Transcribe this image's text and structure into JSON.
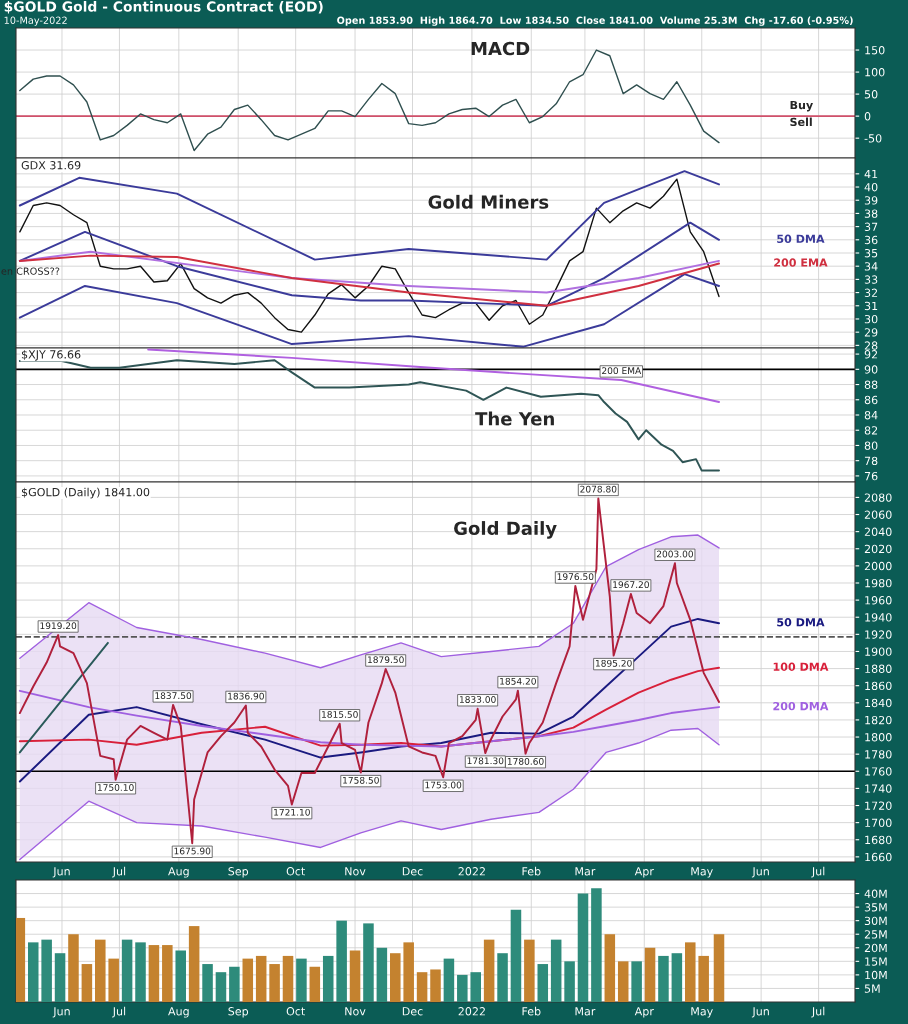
{
  "chart_data": [
    {
      "type": "line",
      "title": "MACD",
      "xlim": [
        "2021-05-08",
        "2022-07-20"
      ],
      "ylim": [
        -95,
        200
      ],
      "yticks": [
        -50,
        0,
        50,
        100,
        150
      ],
      "grid": true,
      "tick_labels": "y",
      "xticks": [
        {
          "value": "2021-06-01",
          "label": null
        },
        {
          "value": "2021-07-01",
          "label": null
        },
        {
          "value": "2021-08-01",
          "label": null
        },
        {
          "value": "2021-09-01",
          "label": null
        },
        {
          "value": "2021-10-01",
          "label": null
        },
        {
          "value": "2021-11-01",
          "label": null
        },
        {
          "value": "2021-12-01",
          "label": null
        },
        {
          "value": "2022-01-01",
          "label": null
        },
        {
          "value": "2022-02-01",
          "label": null
        },
        {
          "value": "2022-03-01",
          "label": null
        },
        {
          "value": "2022-04-01",
          "label": null
        },
        {
          "value": "2022-05-01",
          "label": null
        },
        {
          "value": "2022-06-01",
          "label": null
        },
        {
          "value": "2022-07-01",
          "label": null
        }
      ],
      "x": [
        "2021-05-10",
        "2021-05-17",
        "2021-05-24",
        "2021-05-31",
        "2021-06-07",
        "2021-06-14",
        "2021-06-21",
        "2021-06-28",
        "2021-07-05",
        "2021-07-12",
        "2021-07-19",
        "2021-07-26",
        "2021-08-02",
        "2021-08-09",
        "2021-08-16",
        "2021-08-23",
        "2021-08-30",
        "2021-09-06",
        "2021-09-13",
        "2021-09-20",
        "2021-09-27",
        "2021-10-04",
        "2021-10-11",
        "2021-10-18",
        "2021-10-25",
        "2021-11-01",
        "2021-11-08",
        "2021-11-15",
        "2021-11-22",
        "2021-11-29",
        "2021-12-06",
        "2021-12-13",
        "2021-12-20",
        "2021-12-27",
        "2022-01-03",
        "2022-01-10",
        "2022-01-17",
        "2022-01-24",
        "2022-01-31",
        "2022-02-07",
        "2022-02-14",
        "2022-02-21",
        "2022-02-28",
        "2022-03-07",
        "2022-03-14",
        "2022-03-21",
        "2022-03-28",
        "2022-04-04",
        "2022-04-11",
        "2022-04-18",
        "2022-04-25",
        "2022-05-02",
        "2022-05-10"
      ],
      "series": [
        {
          "color": "#2f4f4f",
          "values": [
            58,
            84,
            91,
            91,
            71,
            32,
            -54,
            -44,
            -21,
            5,
            -8,
            -15,
            5,
            -78,
            -41,
            -25,
            15,
            25,
            -8,
            -44,
            -54,
            -41,
            -28,
            12,
            12,
            -1,
            38,
            74,
            51,
            -17,
            -21,
            -15,
            5,
            15,
            18,
            -1,
            25,
            38,
            -15,
            -1,
            28,
            78,
            94,
            150,
            137,
            51,
            71,
            51,
            38,
            78,
            25,
            -34,
            -60
          ]
        }
      ],
      "ref_lines": [
        {
          "axis": "y",
          "value": 0,
          "color": "#d0506a"
        }
      ],
      "annotations": [
        "$GOLD Gold - Continuous Contract (EOD)",
        "10-May-2022",
        "Open 1853.90  High 1864.70  Low 1834.50  Close 1841.00  Volume 25.3M  Chg -17.60 (-0.95%)",
        "Buy",
        "Sell"
      ]
    },
    {
      "type": "line",
      "title": "Gold Miners",
      "xlim": [
        "2021-05-08",
        "2022-07-20"
      ],
      "ylim": [
        27.8,
        42.2
      ],
      "yticks": [
        28,
        29,
        30,
        31,
        32,
        33,
        34,
        35,
        36,
        37,
        38,
        39,
        40,
        41
      ],
      "grid": true,
      "tick_labels": "y",
      "xticks": [
        {
          "value": "2021-06-01",
          "label": null
        },
        {
          "value": "2021-07-01",
          "label": null
        },
        {
          "value": "2021-08-01",
          "label": null
        },
        {
          "value": "2021-09-01",
          "label": null
        },
        {
          "value": "2021-10-01",
          "label": null
        },
        {
          "value": "2021-11-01",
          "label": null
        },
        {
          "value": "2021-12-01",
          "label": null
        },
        {
          "value": "2022-01-01",
          "label": null
        },
        {
          "value": "2022-02-01",
          "label": null
        },
        {
          "value": "2022-03-01",
          "label": null
        },
        {
          "value": "2022-04-01",
          "label": null
        },
        {
          "value": "2022-05-01",
          "label": null
        },
        {
          "value": "2022-06-01",
          "label": null
        },
        {
          "value": "2022-07-01",
          "label": null
        }
      ],
      "x": [
        "2021-05-10",
        "2021-05-17",
        "2021-05-24",
        "2021-05-31",
        "2021-06-07",
        "2021-06-14",
        "2021-06-21",
        "2021-06-28",
        "2021-07-05",
        "2021-07-12",
        "2021-07-19",
        "2021-07-26",
        "2021-08-02",
        "2021-08-09",
        "2021-08-16",
        "2021-08-23",
        "2021-08-30",
        "2021-09-06",
        "2021-09-13",
        "2021-09-20",
        "2021-09-27",
        "2021-10-04",
        "2021-10-11",
        "2021-10-18",
        "2021-10-25",
        "2021-11-01",
        "2021-11-08",
        "2021-11-15",
        "2021-11-22",
        "2021-11-29",
        "2021-12-06",
        "2021-12-13",
        "2021-12-20",
        "2021-12-27",
        "2022-01-03",
        "2022-01-10",
        "2022-01-17",
        "2022-01-24",
        "2022-01-31",
        "2022-02-07",
        "2022-02-14",
        "2022-02-21",
        "2022-02-28",
        "2022-03-07",
        "2022-03-14",
        "2022-03-21",
        "2022-03-28",
        "2022-04-04",
        "2022-04-11",
        "2022-04-18",
        "2022-04-25",
        "2022-05-02",
        "2022-05-10"
      ],
      "series": [
        {
          "color": "#111111",
          "values": [
            36.6,
            38.6,
            38.8,
            38.6,
            37.9,
            37.3,
            34.0,
            33.8,
            33.8,
            34.0,
            32.8,
            32.9,
            34.2,
            32.3,
            31.6,
            31.2,
            31.8,
            32.0,
            31.2,
            30.1,
            29.2,
            29.0,
            30.3,
            31.9,
            32.6,
            31.6,
            32.5,
            34.0,
            33.8,
            32.0,
            30.3,
            30.1,
            30.7,
            31.2,
            31.2,
            29.9,
            31.0,
            31.4,
            29.6,
            30.3,
            32.3,
            34.4,
            35.1,
            38.4,
            37.3,
            38.2,
            38.8,
            38.4,
            39.3,
            40.6,
            36.6,
            35.1,
            31.7
          ]
        },
        {
          "color": "#3b3b9a",
          "x": [
            "2021-05-10",
            "2021-06-10",
            "2021-07-31",
            "2021-10-11",
            "2021-11-29",
            "2022-02-09",
            "2022-03-11",
            "2022-04-22",
            "2022-05-10"
          ],
          "values": [
            38.6,
            40.7,
            39.5,
            34.5,
            35.3,
            34.5,
            38.8,
            41.2,
            40.2
          ]
        },
        {
          "name": "50 DMA",
          "color": "#3b3b9a",
          "x": [
            "2021-05-10",
            "2021-06-13",
            "2021-07-31",
            "2021-09-29",
            "2021-11-04",
            "2021-11-29",
            "2022-02-09",
            "2022-03-11",
            "2022-04-25",
            "2022-05-10"
          ],
          "values": [
            34.4,
            36.6,
            34.0,
            31.8,
            31.4,
            31.4,
            31.0,
            33.1,
            37.3,
            36.0
          ]
        },
        {
          "color": "#3b3b9a",
          "x": [
            "2021-05-10",
            "2021-06-13",
            "2021-07-31",
            "2021-09-29",
            "2021-11-29",
            "2022-01-28",
            "2022-03-11",
            "2022-04-22",
            "2022-05-10"
          ],
          "values": [
            30.1,
            32.5,
            31.2,
            28.1,
            28.7,
            27.9,
            29.6,
            33.4,
            32.5
          ]
        },
        {
          "color": "#b070e0",
          "x": [
            "2021-05-10",
            "2021-06-16",
            "2021-09-29",
            "2021-11-29",
            "2022-02-09",
            "2022-03-29",
            "2022-05-10"
          ],
          "values": [
            34.4,
            35.1,
            33.1,
            32.5,
            32.0,
            33.1,
            34.4
          ]
        },
        {
          "name": "200 EMA",
          "color": "#d03040",
          "x": [
            "2021-05-10",
            "2021-06-16",
            "2021-07-31",
            "2021-09-29",
            "2021-11-29",
            "2022-02-09",
            "2022-03-29",
            "2022-05-10"
          ],
          "values": [
            34.4,
            34.8,
            34.7,
            33.1,
            32.0,
            31.0,
            32.5,
            34.2
          ]
        }
      ],
      "annotations": [
        "GDX 31.69",
        "en CROSS??"
      ]
    },
    {
      "type": "line",
      "title": "The Yen",
      "xlim": [
        "2021-05-08",
        "2022-07-20"
      ],
      "ylim": [
        75.2,
        92.8
      ],
      "yticks": [
        76,
        78,
        80,
        82,
        84,
        86,
        88,
        90,
        92
      ],
      "grid": true,
      "tick_labels": "y",
      "xticks": [
        {
          "value": "2021-06-01",
          "label": null
        },
        {
          "value": "2021-07-01",
          "label": null
        },
        {
          "value": "2021-08-01",
          "label": null
        },
        {
          "value": "2021-09-01",
          "label": null
        },
        {
          "value": "2021-10-01",
          "label": null
        },
        {
          "value": "2021-11-01",
          "label": null
        },
        {
          "value": "2021-12-01",
          "label": null
        },
        {
          "value": "2022-01-01",
          "label": null
        },
        {
          "value": "2022-02-01",
          "label": null
        },
        {
          "value": "2022-03-01",
          "label": null
        },
        {
          "value": "2022-04-01",
          "label": null
        },
        {
          "value": "2022-05-01",
          "label": null
        },
        {
          "value": "2022-06-01",
          "label": null
        },
        {
          "value": "2022-07-01",
          "label": null
        }
      ],
      "series": [
        {
          "color": "#2f5555",
          "x": [
            "2021-05-10",
            "2021-06-01",
            "2021-06-16",
            "2021-07-01",
            "2021-07-16",
            "2021-07-31",
            "2021-08-30",
            "2021-09-20",
            "2021-09-29",
            "2021-10-11",
            "2021-10-29",
            "2021-11-29",
            "2021-12-05",
            "2021-12-29",
            "2022-01-07",
            "2022-01-19",
            "2022-02-06",
            "2022-02-27",
            "2022-03-08",
            "2022-03-11",
            "2022-03-17",
            "2022-03-23",
            "2022-03-29",
            "2022-04-02",
            "2022-04-10",
            "2022-04-16",
            "2022-04-21",
            "2022-04-28",
            "2022-05-01",
            "2022-05-10"
          ],
          "values": [
            91.1,
            91.1,
            90.2,
            90.2,
            90.7,
            91.2,
            90.7,
            91.2,
            89.6,
            87.6,
            87.6,
            88.0,
            88.3,
            87.2,
            86.0,
            87.6,
            86.4,
            86.8,
            86.6,
            85.7,
            84.2,
            83.1,
            80.8,
            82.0,
            80.1,
            79.3,
            77.8,
            78.2,
            76.7,
            76.7
          ]
        },
        {
          "color": "#b060e0",
          "x": [
            "2021-07-16",
            "2021-09-29",
            "2021-12-05",
            "2022-01-28",
            "2022-03-20",
            "2022-05-10"
          ],
          "values": [
            92.6,
            91.5,
            90.3,
            89.4,
            88.6,
            85.7
          ]
        }
      ],
      "ref_lines": [
        {
          "axis": "y",
          "value": 90,
          "color": "#000000"
        }
      ],
      "annotations": [
        "$XJY 76.66",
        {
          "text": "200 EMA",
          "x": "2022-03-20",
          "y": 88.6
        }
      ]
    },
    {
      "type": "line",
      "title": "Gold Daily",
      "xlim": [
        "2021-05-08",
        "2022-07-20"
      ],
      "ylim": [
        1654,
        2098
      ],
      "yticks": [
        1660,
        1680,
        1700,
        1720,
        1740,
        1760,
        1780,
        1800,
        1820,
        1840,
        1860,
        1880,
        1900,
        1920,
        1940,
        1960,
        1980,
        2000,
        2020,
        2040,
        2060,
        2080
      ],
      "grid": true,
      "xticks": [
        {
          "value": "2021-06-01",
          "label": "Jun"
        },
        {
          "value": "2021-07-01",
          "label": "Jul"
        },
        {
          "value": "2021-08-01",
          "label": "Aug"
        },
        {
          "value": "2021-09-01",
          "label": "Sep"
        },
        {
          "value": "2021-10-01",
          "label": "Oct"
        },
        {
          "value": "2021-11-01",
          "label": "Nov"
        },
        {
          "value": "2021-12-01",
          "label": "Dec"
        },
        {
          "value": "2022-01-01",
          "label": "2022"
        },
        {
          "value": "2022-02-01",
          "label": "Feb"
        },
        {
          "value": "2022-03-01",
          "label": "Mar"
        },
        {
          "value": "2022-04-01",
          "label": "Apr"
        },
        {
          "value": "2022-05-01",
          "label": "May"
        },
        {
          "value": "2022-06-01",
          "label": "Jun"
        },
        {
          "value": "2022-07-01",
          "label": "Jul"
        }
      ],
      "x": [
        "2021-05-10",
        "2021-06-15",
        "2021-07-10",
        "2021-08-13",
        "2021-09-15",
        "2021-10-14",
        "2021-11-04",
        "2021-11-25",
        "2021-12-16",
        "2022-01-11",
        "2022-02-05",
        "2022-02-23",
        "2022-03-12",
        "2022-03-29",
        "2022-04-15",
        "2022-04-29",
        "2022-05-10"
      ],
      "series": [
        {
          "name": "50 DMA",
          "color": "#1a1a80",
          "values": [
            1748,
            1826,
            1835,
            1815,
            1797,
            1776,
            1782,
            1789,
            1793,
            1805,
            1804,
            1824,
            1859,
            1894,
            1929,
            1938,
            1933
          ]
        },
        {
          "name": "100 DMA",
          "color": "#d8203a",
          "values": [
            1795,
            1797,
            1791,
            1805,
            1812,
            1790,
            1791,
            1793,
            1789,
            1795,
            1801,
            1811,
            1832,
            1852,
            1867,
            1877,
            1881
          ]
        },
        {
          "name": "200 DMA",
          "color": "#a060e0",
          "values": [
            1854,
            1835,
            1825,
            1813,
            1803,
            1794,
            1791,
            1790,
            1789,
            1795,
            1801,
            1806,
            1813,
            1820,
            1828,
            1832,
            1835
          ],
          "upper": [
            1892,
            1957,
            1928,
            1914,
            1898,
            1881,
            1896,
            1910,
            1894,
            1900,
            1906,
            1933,
            1999,
            2019,
            2034,
            2036,
            2021
          ],
          "lower": [
            1657,
            1725,
            1700,
            1696,
            1683,
            1671,
            1688,
            1702,
            1692,
            1704,
            1712,
            1739,
            1782,
            1793,
            1808,
            1810,
            1791
          ]
        },
        {
          "color": "#a060e0",
          "values": [
            1892,
            1957,
            1928,
            1914,
            1898,
            1881,
            1896,
            1910,
            1894,
            1900,
            1906,
            1933,
            1999,
            2019,
            2034,
            2036,
            2021
          ]
        },
        {
          "color": "#a060e0",
          "values": [
            1657,
            1725,
            1700,
            1696,
            1683,
            1671,
            1688,
            1702,
            1692,
            1704,
            1712,
            1739,
            1782,
            1793,
            1808,
            1810,
            1791
          ]
        },
        {
          "color": "#2a5a5a",
          "x": [
            "2021-05-10",
            "2021-06-25"
          ],
          "values": [
            1782,
            1910
          ]
        },
        {
          "color": "#b0203c",
          "x": [
            "2021-05-10",
            "2021-05-17",
            "2021-05-24",
            "2021-05-30",
            "2021-05-31",
            "2021-06-07",
            "2021-06-14",
            "2021-06-21",
            "2021-06-28",
            "2021-06-29",
            "2021-07-05",
            "2021-07-12",
            "2021-07-19",
            "2021-07-26",
            "2021-07-29",
            "2021-08-02",
            "2021-08-08",
            "2021-08-09",
            "2021-08-16",
            "2021-08-23",
            "2021-08-30",
            "2021-09-05",
            "2021-09-06",
            "2021-09-13",
            "2021-09-20",
            "2021-09-27",
            "2021-09-29",
            "2021-10-04",
            "2021-10-11",
            "2021-10-18",
            "2021-10-24",
            "2021-10-25",
            "2021-11-01",
            "2021-11-04",
            "2021-11-08",
            "2021-11-15",
            "2021-11-17",
            "2021-11-22",
            "2021-11-29",
            "2021-12-06",
            "2021-12-13",
            "2021-12-17",
            "2021-12-20",
            "2021-12-27",
            "2022-01-03",
            "2022-01-04",
            "2022-01-08",
            "2022-01-10",
            "2022-01-17",
            "2022-01-24",
            "2022-01-25",
            "2022-01-29",
            "2022-01-31",
            "2022-02-07",
            "2022-02-14",
            "2022-02-21",
            "2022-02-24",
            "2022-02-28",
            "2022-03-07",
            "2022-03-08",
            "2022-03-14",
            "2022-03-16",
            "2022-03-21",
            "2022-03-25",
            "2022-03-28",
            "2022-04-04",
            "2022-04-11",
            "2022-04-17",
            "2022-04-18",
            "2022-04-25",
            "2022-05-02",
            "2022-05-10"
          ],
          "values": [
            1828,
            1859,
            1887,
            1919.2,
            1906,
            1898,
            1863,
            1778,
            1774,
            1750.1,
            1797,
            1813,
            1805,
            1797,
            1837.5,
            1813,
            1675.9,
            1727,
            1782,
            1801,
            1817,
            1836.9,
            1805,
            1789,
            1762,
            1743,
            1721.1,
            1758,
            1758,
            1789,
            1815.5,
            1793,
            1785,
            1758.5,
            1817,
            1863,
            1879.5,
            1852,
            1789,
            1782,
            1778,
            1753,
            1793,
            1801,
            1820,
            1833,
            1781.3,
            1793,
            1824,
            1844,
            1854.2,
            1780.6,
            1793,
            1817,
            1863,
            1906,
            1976.5,
            1937,
            1996,
            2078.8,
            1964,
            1895.2,
            1933,
            1967.2,
            1945,
            1933,
            1953,
            2003,
            1980,
            1937,
            1875,
            1841
          ]
        }
      ],
      "ref_lines": [
        {
          "axis": "y",
          "value": 1917,
          "color": "#555555",
          "line_style": "dashed"
        },
        {
          "axis": "y",
          "value": 1760,
          "color": "#000000"
        }
      ],
      "annotations": [
        "$GOLD (Daily) 1841.00",
        {
          "text": "1919.20",
          "x": "2021-05-30",
          "y": 1919.2
        },
        {
          "text": "1750.10",
          "x": "2021-06-29",
          "y": 1750.1
        },
        {
          "text": "1837.50",
          "x": "2021-07-29",
          "y": 1837.5
        },
        {
          "text": "1675.90",
          "x": "2021-08-08",
          "y": 1675.9
        },
        {
          "text": "1836.90",
          "x": "2021-09-05",
          "y": 1836.9
        },
        {
          "text": "1721.10",
          "x": "2021-09-29",
          "y": 1721.1
        },
        {
          "text": "1815.50",
          "x": "2021-10-24",
          "y": 1815.5
        },
        {
          "text": "1758.50",
          "x": "2021-11-04",
          "y": 1758.5
        },
        {
          "text": "1879.50",
          "x": "2021-11-17",
          "y": 1879.5
        },
        {
          "text": "1753.00",
          "x": "2021-12-17",
          "y": 1753.0
        },
        {
          "text": "1833.00",
          "x": "2022-01-04",
          "y": 1833.0
        },
        {
          "text": "1781.30",
          "x": "2022-01-08",
          "y": 1781.3
        },
        {
          "text": "1854.20",
          "x": "2022-01-25",
          "y": 1854.2
        },
        {
          "text": "1780.60",
          "x": "2022-01-29",
          "y": 1780.6
        },
        {
          "text": "1976.50",
          "x": "2022-02-24",
          "y": 1976.5
        },
        {
          "text": "2078.80",
          "x": "2022-03-08",
          "y": 2078.8
        },
        {
          "text": "1895.20",
          "x": "2022-03-16",
          "y": 1895.2
        },
        {
          "text": "1967.20",
          "x": "2022-03-25",
          "y": 1967.2
        },
        {
          "text": "2003.00",
          "x": "2022-04-17",
          "y": 2003.0
        }
      ]
    },
    {
      "type": "bar",
      "xlim": [
        "2021-05-08",
        "2022-07-20"
      ],
      "ylim": [
        0,
        45
      ],
      "grid": true,
      "yticks": [
        {
          "value": 5,
          "label": "5M"
        },
        {
          "value": 10,
          "label": "10M"
        },
        {
          "value": 15,
          "label": "15M"
        },
        {
          "value": 20,
          "label": "20M"
        },
        {
          "value": 25,
          "label": "25M"
        },
        {
          "value": 30,
          "label": "30M"
        },
        {
          "value": 35,
          "label": "35M"
        },
        {
          "value": 40,
          "label": "40M"
        }
      ],
      "xticks": [
        {
          "value": "2021-06-01",
          "label": "Jun"
        },
        {
          "value": "2021-07-01",
          "label": "Jul"
        },
        {
          "value": "2021-08-01",
          "label": "Aug"
        },
        {
          "value": "2021-09-01",
          "label": "Sep"
        },
        {
          "value": "2021-10-01",
          "label": "Oct"
        },
        {
          "value": "2021-11-01",
          "label": "Nov"
        },
        {
          "value": "2021-12-01",
          "label": "Dec"
        },
        {
          "value": "2022-01-01",
          "label": "2022"
        },
        {
          "value": "2022-02-01",
          "label": "Feb"
        },
        {
          "value": "2022-03-01",
          "label": "Mar"
        },
        {
          "value": "2022-04-01",
          "label": "Apr"
        },
        {
          "value": "2022-05-01",
          "label": "May"
        },
        {
          "value": "2022-06-01",
          "label": "Jun"
        },
        {
          "value": "2022-07-01",
          "label": "Jul"
        }
      ],
      "x": [
        "2021-05-10",
        "2021-05-17",
        "2021-05-24",
        "2021-05-31",
        "2021-06-07",
        "2021-06-14",
        "2021-06-21",
        "2021-06-28",
        "2021-07-05",
        "2021-07-12",
        "2021-07-19",
        "2021-07-26",
        "2021-08-02",
        "2021-08-09",
        "2021-08-16",
        "2021-08-23",
        "2021-08-30",
        "2021-09-06",
        "2021-09-13",
        "2021-09-20",
        "2021-09-27",
        "2021-10-04",
        "2021-10-11",
        "2021-10-18",
        "2021-10-25",
        "2021-11-01",
        "2021-11-08",
        "2021-11-15",
        "2021-11-22",
        "2021-11-29",
        "2021-12-06",
        "2021-12-13",
        "2021-12-20",
        "2021-12-27",
        "2022-01-03",
        "2022-01-10",
        "2022-01-17",
        "2022-01-24",
        "2022-01-31",
        "2022-02-07",
        "2022-02-14",
        "2022-02-21",
        "2022-02-28",
        "2022-03-07",
        "2022-03-14",
        "2022-03-21",
        "2022-03-28",
        "2022-04-04",
        "2022-04-11",
        "2022-04-18",
        "2022-04-25",
        "2022-05-02",
        "2022-05-10"
      ],
      "values": [
        31,
        22,
        23,
        18,
        25,
        14,
        23,
        16,
        23,
        22,
        21,
        21,
        19,
        28,
        14,
        11,
        13,
        16,
        17,
        14,
        17,
        16,
        13,
        17,
        30,
        19,
        29,
        20,
        18,
        22,
        11,
        12,
        16,
        10,
        11,
        23,
        18,
        34,
        23,
        14,
        23,
        15,
        40,
        42,
        25,
        15,
        15,
        20,
        17,
        18,
        22,
        17,
        25
      ],
      "colors": [
        "#c4822f",
        "#2e8b7b",
        "#2e8b7b",
        "#2e8b7b",
        "#c4822f",
        "#c4822f",
        "#c4822f",
        "#c4822f",
        "#2e8b7b",
        "#2e8b7b",
        "#c4822f",
        "#c4822f",
        "#2e8b7b",
        "#c4822f",
        "#2e8b7b",
        "#2e8b7b",
        "#2e8b7b",
        "#c4822f",
        "#c4822f",
        "#c4822f",
        "#c4822f",
        "#2e8b7b",
        "#c4822f",
        "#2e8b7b",
        "#2e8b7b",
        "#c4822f",
        "#2e8b7b",
        "#2e8b7b",
        "#c4822f",
        "#c4822f",
        "#c4822f",
        "#c4822f",
        "#2e8b7b",
        "#2e8b7b",
        "#2e8b7b",
        "#c4822f",
        "#2e8b7b",
        "#2e8b7b",
        "#c4822f",
        "#2e8b7b",
        "#2e8b7b",
        "#2e8b7b",
        "#2e8b7b",
        "#2e8b7b",
        "#c4822f",
        "#c4822f",
        "#2e8b7b",
        "#c4822f",
        "#2e8b7b",
        "#2e8b7b",
        "#c4822f",
        "#c4822f",
        "#c4822f"
      ]
    }
  ]
}
